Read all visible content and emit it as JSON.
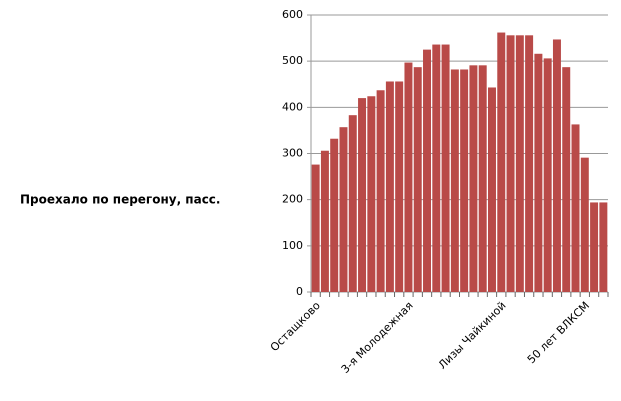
{
  "chart_data": {
    "type": "bar",
    "y_label": "Проехало по перегону, пасс.",
    "categories": [
      "Остащково",
      null,
      null,
      null,
      null,
      null,
      null,
      null,
      null,
      null,
      "3-я Молодежная",
      null,
      null,
      null,
      null,
      null,
      null,
      null,
      null,
      null,
      "Лизы Чайкиной",
      null,
      null,
      null,
      null,
      null,
      null,
      null,
      null,
      "50 лет ВЛКСМ",
      null,
      null
    ],
    "values": [
      276,
      306,
      332,
      357,
      383,
      420,
      424,
      437,
      456,
      456,
      497,
      487,
      525,
      536,
      536,
      482,
      482,
      491,
      491,
      443,
      562,
      556,
      556,
      556,
      516,
      506,
      547,
      487,
      363,
      291,
      194,
      194
    ],
    "color": "#b94a48",
    "ylim": [
      0,
      600
    ],
    "yticks": [
      0,
      100,
      200,
      300,
      400,
      500,
      600
    ],
    "grid": true
  }
}
